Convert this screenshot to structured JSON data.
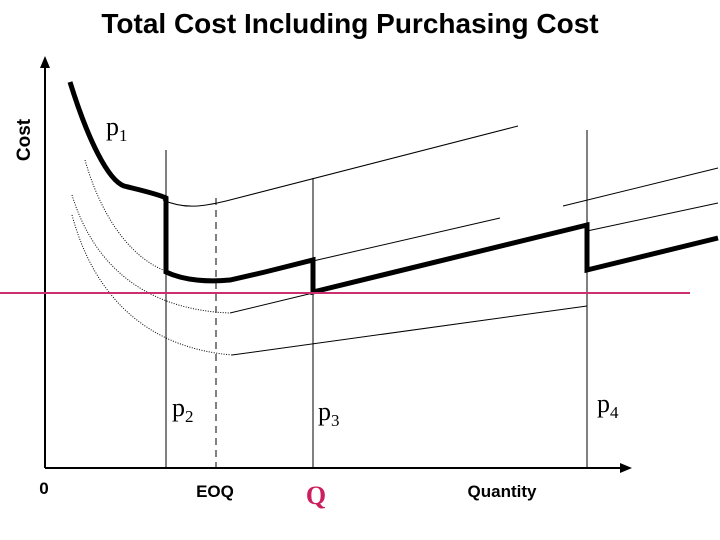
{
  "title": "Total Cost Including Purchasing Cost",
  "y_axis_label": "Cost",
  "x_axis_label": "Quantity",
  "origin_label": "0",
  "eoq_label": "EOQ",
  "q_label": "Q",
  "price_labels": {
    "p1": {
      "base": "p",
      "sub": "1"
    },
    "p2": {
      "base": "p",
      "sub": "2"
    },
    "p3": {
      "base": "p",
      "sub": "3"
    },
    "p4": {
      "base": "p",
      "sub": "4"
    }
  },
  "colors": {
    "axis": "#000000",
    "curve": "#000000",
    "q_label": "#cc1f5f",
    "threshold_line": "#cc2f6f"
  }
}
